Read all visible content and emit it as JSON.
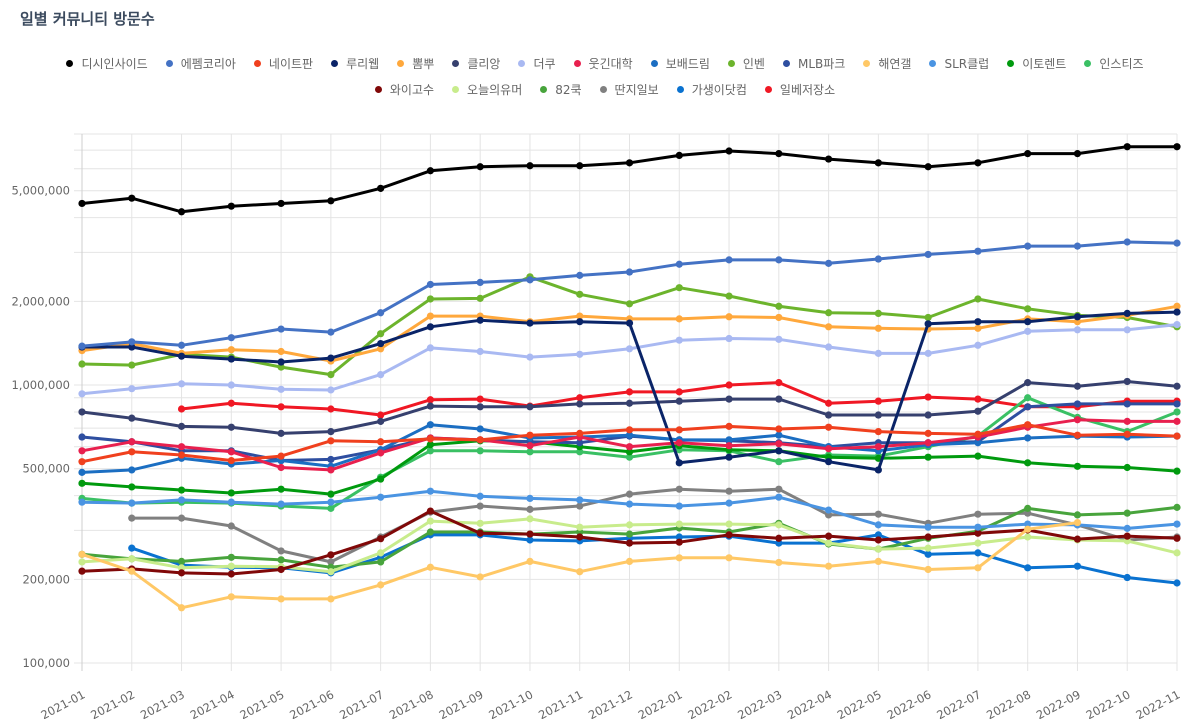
{
  "title": "일별 커뮤니티 방문수",
  "chart_data": {
    "type": "line",
    "title": "일별 커뮤니티 방문수",
    "y_scale": "log",
    "ylim": [
      100000,
      8000000
    ],
    "y_tick_values": [
      5000000,
      2000000,
      1000000,
      500000,
      200000,
      100000
    ],
    "y_tick_labels": [
      "5,000,000",
      "2,000,000",
      "1,000,000",
      "500,000",
      "200,000",
      "100,000"
    ],
    "grid": true,
    "legend_position": "top",
    "categories": [
      "2021-01",
      "2021-02",
      "2021-03",
      "2021-04",
      "2021-05",
      "2021-06",
      "2021-07",
      "2021-08",
      "2021-09",
      "2021-10",
      "2021-11",
      "2021-12",
      "2022-01",
      "2022-02",
      "2022-03",
      "2022-04",
      "2022-05",
      "2022-06",
      "2022-07",
      "2022-08",
      "2022-09",
      "2022-10",
      "2022-11"
    ],
    "series": [
      {
        "name": "디시인사이드",
        "color": "#000000",
        "values": [
          4500000,
          4700000,
          4200000,
          4400000,
          4500000,
          4600000,
          5100000,
          5900000,
          6100000,
          6150000,
          6150000,
          6300000,
          6700000,
          6950000,
          6800000,
          6500000,
          6300000,
          6100000,
          6300000,
          6800000,
          6800000,
          7200000,
          7200000
        ]
      },
      {
        "name": "에펨코리아",
        "color": "#4472c4",
        "values": [
          1380000,
          1430000,
          1390000,
          1480000,
          1590000,
          1550000,
          1820000,
          2300000,
          2340000,
          2390000,
          2480000,
          2550000,
          2720000,
          2820000,
          2820000,
          2740000,
          2840000,
          2950000,
          3030000,
          3160000,
          3160000,
          3270000,
          3240000
        ]
      },
      {
        "name": "네이트판",
        "color": "#f0401e",
        "values": [
          530000,
          575000,
          560000,
          535000,
          555000,
          630000,
          625000,
          640000,
          635000,
          660000,
          670000,
          690000,
          690000,
          710000,
          695000,
          705000,
          680000,
          670000,
          665000,
          720000,
          660000,
          665000,
          655000
        ]
      },
      {
        "name": "루리웹",
        "color": "#0a2468",
        "values": [
          1370000,
          1370000,
          1270000,
          1240000,
          1210000,
          1250000,
          1410000,
          1620000,
          1710000,
          1670000,
          1690000,
          1670000,
          525000,
          550000,
          580000,
          530000,
          495000,
          1660000,
          1690000,
          1690000,
          1760000,
          1810000,
          1830000
        ]
      },
      {
        "name": "뽐뿌",
        "color": "#ffa83c",
        "values": [
          1330000,
          1410000,
          1300000,
          1340000,
          1320000,
          1220000,
          1350000,
          1770000,
          1770000,
          1690000,
          1770000,
          1730000,
          1730000,
          1760000,
          1750000,
          1620000,
          1600000,
          1590000,
          1600000,
          1730000,
          1690000,
          1780000,
          1920000
        ]
      },
      {
        "name": "클리앙",
        "color": "#36406e",
        "values": [
          800000,
          760000,
          710000,
          705000,
          670000,
          680000,
          740000,
          840000,
          835000,
          835000,
          855000,
          860000,
          875000,
          890000,
          890000,
          780000,
          780000,
          780000,
          805000,
          1020000,
          990000,
          1030000,
          990000
        ]
      },
      {
        "name": "더쿠",
        "color": "#a9b9f2",
        "values": [
          930000,
          970000,
          1010000,
          1000000,
          965000,
          960000,
          1090000,
          1360000,
          1320000,
          1260000,
          1290000,
          1350000,
          1450000,
          1470000,
          1460000,
          1370000,
          1300000,
          1300000,
          1390000,
          1560000,
          1580000,
          1580000,
          1650000
        ]
      },
      {
        "name": "웃긴대학",
        "color": "#e8204e",
        "values": [
          580000,
          625000,
          600000,
          575000,
          505000,
          495000,
          570000,
          645000,
          635000,
          605000,
          650000,
          600000,
          620000,
          605000,
          615000,
          590000,
          600000,
          620000,
          650000,
          705000,
          750000,
          740000,
          740000
        ]
      },
      {
        "name": "보배드림",
        "color": "#1b6ec2",
        "values": [
          485000,
          495000,
          545000,
          520000,
          535000,
          510000,
          585000,
          720000,
          695000,
          645000,
          650000,
          660000,
          635000,
          635000,
          660000,
          600000,
          580000,
          610000,
          620000,
          645000,
          655000,
          650000,
          655000
        ]
      },
      {
        "name": "인벤",
        "color": "#6cb42c",
        "values": [
          1190000,
          1180000,
          1290000,
          1260000,
          1160000,
          1090000,
          1530000,
          2040000,
          2050000,
          2450000,
          2120000,
          1960000,
          2240000,
          2090000,
          1920000,
          1820000,
          1810000,
          1750000,
          2040000,
          1880000,
          1780000,
          1750000,
          1620000
        ]
      },
      {
        "name": "MLB파크",
        "color": "#2e4ea0",
        "values": [
          650000,
          625000,
          580000,
          580000,
          535000,
          540000,
          585000,
          645000,
          635000,
          625000,
          620000,
          655000,
          635000,
          630000,
          620000,
          600000,
          620000,
          620000,
          625000,
          835000,
          855000,
          855000,
          855000
        ]
      },
      {
        "name": "해연갤",
        "color": "#ffc866",
        "values": [
          246000,
          214000,
          158000,
          173000,
          170000,
          170000,
          191000,
          221000,
          204000,
          232000,
          213000,
          232000,
          239000,
          239000,
          230000,
          223000,
          232000,
          217000,
          220000,
          303000,
          320000,
          null,
          null
        ]
      },
      {
        "name": "SLR클럽",
        "color": "#4a94e2",
        "values": [
          379000,
          376000,
          386000,
          379000,
          373000,
          379000,
          395000,
          415000,
          398000,
          391000,
          386000,
          373000,
          367000,
          376000,
          395000,
          355000,
          314000,
          308000,
          308000,
          316000,
          314000,
          305000,
          316000
        ]
      },
      {
        "name": "이토렌트",
        "color": "#009a0e",
        "values": [
          443000,
          430000,
          419000,
          409000,
          422000,
          405000,
          459000,
          610000,
          630000,
          625000,
          600000,
          575000,
          605000,
          585000,
          580000,
          550000,
          545000,
          550000,
          555000,
          525000,
          510000,
          505000,
          490000
        ]
      },
      {
        "name": "인스티즈",
        "color": "#3ac064",
        "values": [
          391000,
          376000,
          379000,
          376000,
          367000,
          360000,
          466000,
          580000,
          580000,
          575000,
          575000,
          550000,
          585000,
          580000,
          530000,
          560000,
          555000,
          600000,
          655000,
          900000,
          765000,
          680000,
          800000
        ]
      },
      {
        "name": "와이고수",
        "color": "#800808",
        "values": [
          214000,
          218000,
          211000,
          209000,
          217000,
          245000,
          280000,
          352000,
          293000,
          291000,
          284000,
          270000,
          272000,
          289000,
          281000,
          286000,
          277000,
          284000,
          293000,
          301000,
          279000,
          286000,
          281000
        ]
      },
      {
        "name": "오늘의유머",
        "color": "#c8ec8c",
        "values": [
          231000,
          237000,
          220000,
          223000,
          222000,
          213000,
          249000,
          324000,
          318000,
          330000,
          308000,
          314000,
          316000,
          316000,
          314000,
          270000,
          257000,
          259000,
          270000,
          284000,
          277000,
          275000,
          249000
        ]
      },
      {
        "name": "82쿡",
        "color": "#48a43c",
        "values": [
          246000,
          237000,
          232000,
          240000,
          235000,
          221000,
          231000,
          296000,
          296000,
          291000,
          296000,
          291000,
          306000,
          296000,
          318000,
          268000,
          257000,
          281000,
          298000,
          360000,
          341000,
          346000,
          363000
        ]
      },
      {
        "name": "딴지일보",
        "color": "#808080",
        "values": [
          null,
          332000,
          332000,
          311000,
          253000,
          231000,
          284000,
          349000,
          367000,
          357000,
          367000,
          405000,
          422000,
          415000,
          422000,
          341000,
          343000,
          318000,
          343000,
          346000,
          314000,
          277000,
          284000
        ]
      },
      {
        "name": "가생이닷컴",
        "color": "#0a72d0",
        "values": [
          null,
          259000,
          225000,
          221000,
          220000,
          211000,
          240000,
          289000,
          289000,
          277000,
          275000,
          281000,
          284000,
          286000,
          270000,
          270000,
          289000,
          246000,
          249000,
          220000,
          223000,
          203000,
          194000
        ]
      },
      {
        "name": "일베저장소",
        "color": "#f01824",
        "values": [
          null,
          null,
          820000,
          860000,
          835000,
          820000,
          780000,
          885000,
          890000,
          840000,
          900000,
          945000,
          945000,
          1000000,
          1020000,
          860000,
          875000,
          905000,
          890000,
          835000,
          835000,
          875000,
          875000
        ]
      }
    ]
  }
}
